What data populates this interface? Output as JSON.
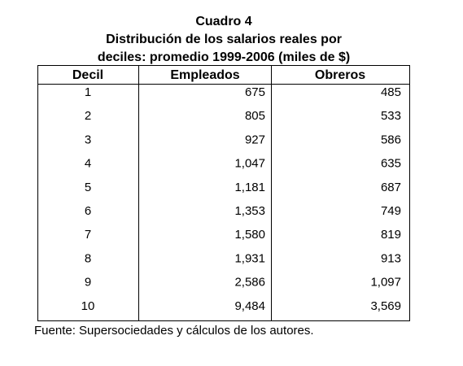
{
  "header": {
    "label": "Cuadro 4",
    "lines": [
      "Distribución de los salarios reales por",
      "deciles: promedio 1999-2006 (miles de $)"
    ]
  },
  "table": {
    "columns": [
      "Decil",
      "Empleados",
      "Obreros"
    ],
    "rows": [
      [
        "1",
        "675",
        "485"
      ],
      [
        "2",
        "805",
        "533"
      ],
      [
        "3",
        "927",
        "586"
      ],
      [
        "4",
        "1,047",
        "635"
      ],
      [
        "5",
        "1,181",
        "687"
      ],
      [
        "6",
        "1,353",
        "749"
      ],
      [
        "7",
        "1,580",
        "819"
      ],
      [
        "8",
        "1,931",
        "913"
      ],
      [
        "9",
        "2,586",
        "1,097"
      ],
      [
        "10",
        "9,484",
        "3,569"
      ]
    ]
  },
  "source": "Fuente: Supersociedades y cálculos de los autores."
}
